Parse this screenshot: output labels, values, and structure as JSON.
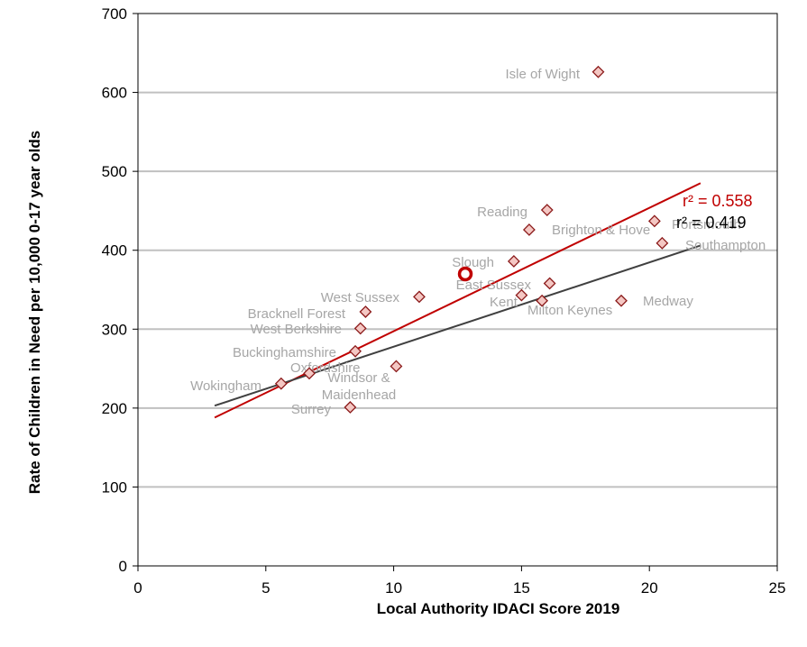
{
  "chart_data": {
    "type": "scatter",
    "title": "",
    "xlabel": "Local Authority IDACI Score 2019",
    "ylabel": "Rate of Children in Need per 10,000 0-17 year olds",
    "xlim": [
      0,
      25
    ],
    "ylim": [
      0,
      700
    ],
    "xticks": [
      0,
      5,
      10,
      15,
      20,
      25
    ],
    "yticks": [
      0,
      100,
      200,
      300,
      400,
      500,
      600,
      700
    ],
    "grid": "horizontal",
    "points": [
      {
        "label": "Isle of Wight",
        "x": 18.0,
        "y": 626
      },
      {
        "label": "Reading",
        "x": 16.0,
        "y": 451
      },
      {
        "label": "Portsmouth",
        "x": 20.2,
        "y": 437
      },
      {
        "label": "Brighton & Hove",
        "x": 15.3,
        "y": 426
      },
      {
        "label": "Southampton",
        "x": 20.5,
        "y": 409
      },
      {
        "label": "Slough",
        "x": 14.7,
        "y": 386
      },
      {
        "label": "East Sussex",
        "x": 16.1,
        "y": 358
      },
      {
        "label": "West Sussex",
        "x": 11.0,
        "y": 341
      },
      {
        "label": "Kent",
        "x": 15.0,
        "y": 343
      },
      {
        "label": "Milton Keynes",
        "x": 15.8,
        "y": 336
      },
      {
        "label": "Medway",
        "x": 18.9,
        "y": 336
      },
      {
        "label": "Bracknell Forest",
        "x": 8.9,
        "y": 322
      },
      {
        "label": "West Berkshire",
        "x": 8.7,
        "y": 301
      },
      {
        "label": "Buckinghamshire",
        "x": 8.5,
        "y": 272
      },
      {
        "label": "Windsor & Maidenhead",
        "x": 10.1,
        "y": 253
      },
      {
        "label": "Oxfordshire",
        "x": 6.7,
        "y": 244
      },
      {
        "label": "Wokingham",
        "x": 5.6,
        "y": 231
      },
      {
        "label": "Surrey",
        "x": 8.3,
        "y": 201
      }
    ],
    "highlight": {
      "x": 12.8,
      "y": 370
    },
    "trendlines": [
      {
        "label": "r² = 0.558",
        "color": "#c00000",
        "x": [
          3,
          22
        ],
        "y": [
          188,
          485
        ]
      },
      {
        "label": "r² = 0.419",
        "color": "#404040",
        "x": [
          3,
          22
        ],
        "y": [
          203,
          406
        ]
      }
    ],
    "colors": {
      "marker_fill": "#f4c7c3",
      "marker_stroke": "#8b1a1a",
      "highlight": "#c00000",
      "label": "#a6a6a6",
      "grid": "#c0c0c0"
    }
  }
}
